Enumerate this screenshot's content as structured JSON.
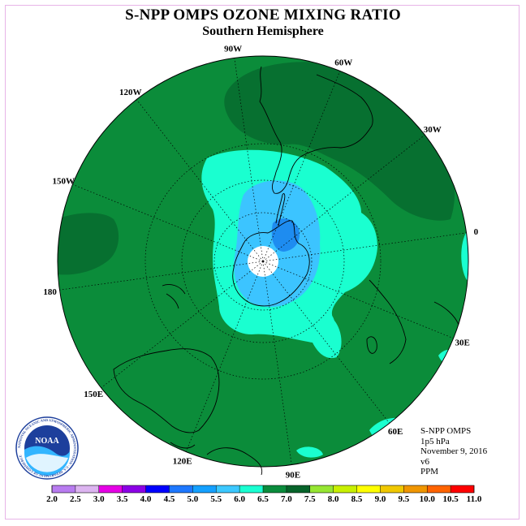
{
  "title": "S-NPP OMPS OZONE MIXING RATIO",
  "subtitle": "Southern Hemisphere",
  "info": {
    "instrument": "S-NPP OMPS",
    "level": "1p5 hPa",
    "date": "November 9, 2016",
    "version": "v6",
    "units": "PPM"
  },
  "longitude_labels": [
    {
      "label": "90W",
      "deg": 90
    },
    {
      "label": "60W",
      "deg": 60
    },
    {
      "label": "120W",
      "deg": 120
    },
    {
      "label": "30W",
      "deg": 30
    },
    {
      "label": "150W",
      "deg": 150
    },
    {
      "label": "0",
      "deg": 0
    },
    {
      "label": "180",
      "deg": 180
    },
    {
      "label": "30E",
      "deg": -30
    },
    {
      "label": "150E",
      "deg": -150
    },
    {
      "label": "60E",
      "deg": -60
    },
    {
      "label": "120E",
      "deg": -120
    },
    {
      "label": "90E",
      "deg": -90
    }
  ],
  "colorbar": {
    "ticks": [
      "2.0",
      "2.5",
      "3.0",
      "3.5",
      "4.0",
      "4.5",
      "5.0",
      "5.5",
      "6.0",
      "6.5",
      "7.0",
      "7.5",
      "8.0",
      "8.5",
      "9.0",
      "9.5",
      "10.0",
      "10.5",
      "11.0"
    ],
    "colors": [
      "#b87cf0",
      "#dcb4f0",
      "#e600e6",
      "#8c00e6",
      "#0000ff",
      "#1e78ff",
      "#14a0ff",
      "#3cc8ff",
      "#1affd2",
      "#0a8c3c",
      "#06642a",
      "#96e632",
      "#c8f000",
      "#ffff00",
      "#f0c800",
      "#f09600",
      "#ff6400",
      "#ff0000",
      "#8c5a3c"
    ]
  },
  "colors": {
    "field_base": "#0b8c3a",
    "field_dark": "#077030",
    "cyan": "#1affd0",
    "light_blue": "#3cc4ff",
    "mid_blue": "#1e8cf0",
    "pole_hole": "#ffffff"
  },
  "logo": {
    "text": "NOAA",
    "ring_text": "NATIONAL OCEANIC AND ATMOSPHERIC ADMINISTRATION · U.S. DEPARTMENT OF COMMERCE"
  }
}
